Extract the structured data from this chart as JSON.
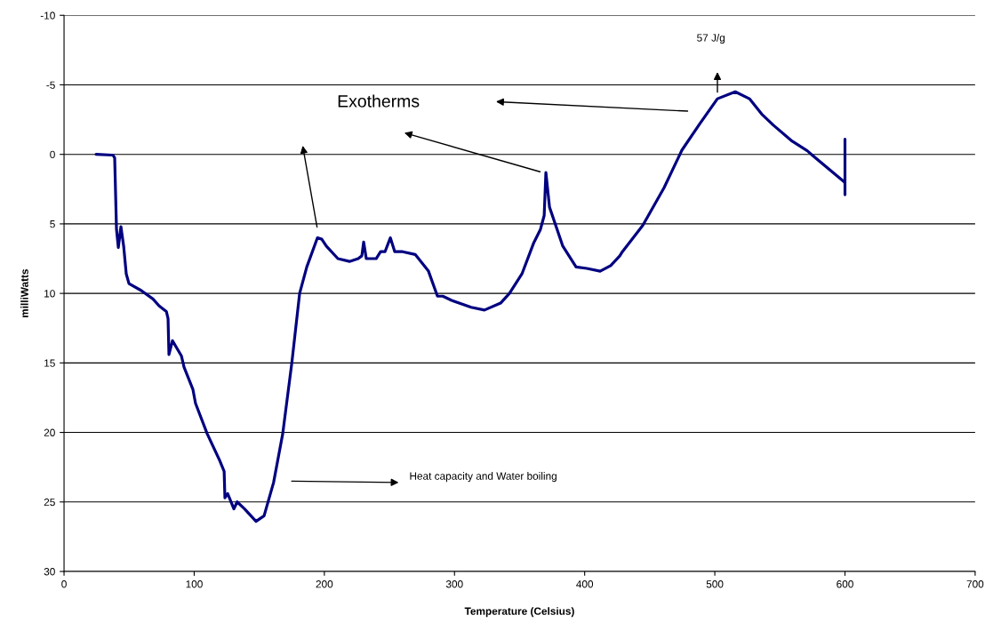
{
  "chart_data": {
    "type": "line",
    "xlabel": "Temperature (Celsius)",
    "ylabel": "milliWatts",
    "xlim": [
      0,
      700
    ],
    "xticks": [
      0,
      100,
      200,
      300,
      400,
      500,
      600,
      700
    ],
    "ylim": [
      30,
      -10
    ],
    "yticks": [
      30,
      25,
      20,
      15,
      10,
      5,
      0,
      {
        "value": -5,
        "label": "-5"
      },
      {
        "value": -10,
        "label": "-10"
      }
    ],
    "grid": "y",
    "marker": "none",
    "line_style": "solid",
    "annotations": [
      "Exotherms",
      "57 J/g",
      "Heat capacity and Water boiling"
    ],
    "series": [
      {
        "color": "#000080",
        "x": [
          24.6,
          36.9,
          37.6,
          38.9,
          40.3,
          41.7,
          43.7,
          45.8,
          47.8,
          49.9,
          59.4,
          68.3,
          73.1,
          78.6,
          79.9,
          80.6,
          83.3,
          90.2,
          92.2,
          99,
          101,
          110,
          119.5,
          123,
          123.6,
          125.7,
          130.5,
          133,
          138.7,
          147.5,
          153.7,
          161,
          168,
          175,
          181,
          186.5,
          194.7,
          198,
          201.5,
          210.4,
          219.3,
          226,
          228.8,
          230.2,
          232.2,
          239.8,
          243.2,
          246.6,
          250.7,
          254.1,
          260.2,
          269.8,
          280,
          286.9,
          291,
          297.8,
          312.8,
          323,
          335.4,
          342.2,
          351.8,
          360.7,
          366,
          368.9,
          370.2,
          373,
          383.2,
          393.4,
          401.6,
          411.9,
          420,
          427,
          429,
          444.7,
          461,
          474.7,
          488.4,
          502,
          515.7,
          526.6,
          536,
          545,
          558.7,
          571,
          575.8,
          599.7,
          600,
          600,
          600
        ],
        "values": [
          0,
          0.05,
          0.06,
          0.25,
          5.4,
          6.7,
          5.2,
          6.6,
          8.6,
          9.3,
          9.8,
          10.4,
          10.9,
          11.3,
          11.8,
          14.4,
          13.4,
          14.5,
          15.3,
          16.9,
          17.9,
          20.1,
          22,
          22.8,
          24.7,
          24.4,
          25.5,
          25,
          25.5,
          26.4,
          26,
          23.6,
          20.1,
          15,
          10,
          8.1,
          6,
          6.1,
          6.6,
          7.5,
          7.7,
          7.5,
          7.3,
          6.3,
          7.5,
          7.5,
          7,
          7,
          6,
          7,
          7,
          7.2,
          8.4,
          10.2,
          10.2,
          10.5,
          11,
          11.2,
          10.7,
          10,
          8.6,
          6.4,
          5.4,
          4.4,
          1.3,
          3.8,
          6.6,
          8.1,
          8.2,
          8.4,
          8,
          7.3,
          7,
          5.1,
          2.4,
          -0.3,
          -2.2,
          -4,
          -4.5,
          -4,
          -2.9,
          -2.1,
          -1,
          -0.26,
          0.13,
          2,
          2.1,
          -1.1,
          2.9
        ]
      }
    ]
  }
}
